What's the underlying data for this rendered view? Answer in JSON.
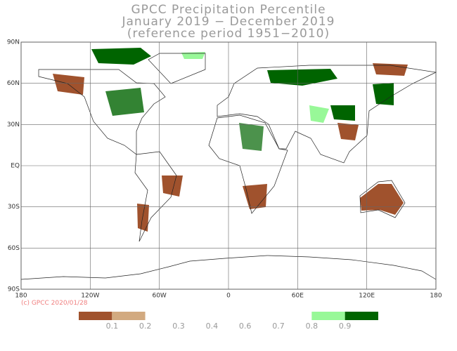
{
  "title": [
    "GPCC Precipitation Percentile",
    "January 2019 − December 2019",
    "(reference period 1951−2010)"
  ],
  "map": {
    "xlim": [
      -180,
      180
    ],
    "ylim": [
      -90,
      90
    ],
    "xticks": [
      {
        "value": -180,
        "label": "180"
      },
      {
        "value": -120,
        "label": "120W"
      },
      {
        "value": -60,
        "label": "60W"
      },
      0,
      {
        "value": 60,
        "label": "60E"
      },
      {
        "value": 120,
        "label": "120E"
      },
      {
        "value": 180,
        "label": "180"
      }
    ],
    "yticks": [
      {
        "value": 90,
        "label": "90N"
      },
      {
        "value": 60,
        "label": "60N"
      },
      {
        "value": 30,
        "label": "30N"
      },
      {
        "value": 0,
        "label": "EQ"
      },
      {
        "value": -30,
        "label": "30S"
      },
      {
        "value": -60,
        "label": "60S"
      },
      {
        "value": -90,
        "label": "90S"
      }
    ],
    "grid": true
  },
  "copyright": "(c) GPCC 2020/01/28",
  "colorbar": {
    "ticks": [
      0.1,
      0.2,
      0.3,
      0.4,
      0.6,
      0.7,
      0.8,
      0.9
    ],
    "colors": [
      "#a0522d",
      "#d2aa80",
      "#ffffff",
      "#ffffff",
      "#ffffff",
      "#ffffff",
      "#ffffff",
      "#98f898",
      "#006400"
    ]
  }
}
